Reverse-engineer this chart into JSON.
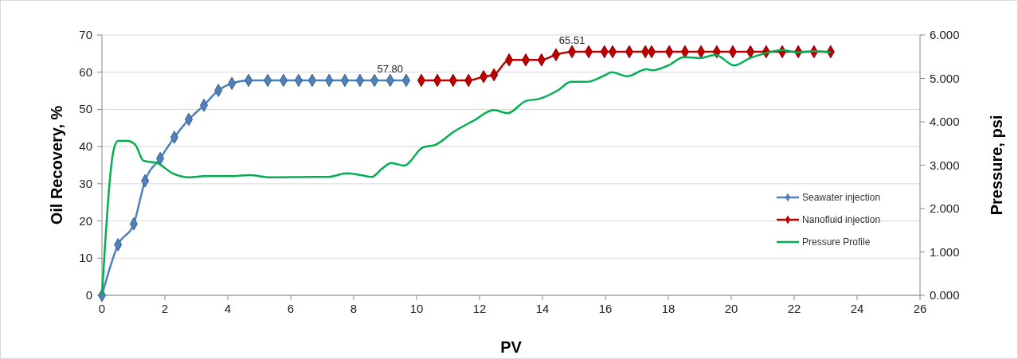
{
  "chart_data": {
    "type": "line",
    "xlabel": "PV",
    "ylabel": "Oil Recovery, %",
    "y2label": "Pressure, psi",
    "xlim": [
      0,
      26
    ],
    "xticks": [
      0,
      2,
      4,
      6,
      8,
      10,
      12,
      14,
      16,
      18,
      20,
      22,
      24,
      26
    ],
    "ylim": [
      0,
      70
    ],
    "yticks": [
      0,
      10,
      20,
      30,
      40,
      50,
      60,
      70
    ],
    "y2lim": [
      0,
      6
    ],
    "y2ticks": [
      {
        "value": 0,
        "label": "0.000"
      },
      {
        "value": 1,
        "label": "1.000"
      },
      {
        "value": 2,
        "label": "2.000"
      },
      {
        "value": 3,
        "label": "3.000"
      },
      {
        "value": 4,
        "label": "4.000"
      },
      {
        "value": 5,
        "label": "5.000"
      },
      {
        "value": 6,
        "label": "6.000"
      }
    ],
    "grid": "y",
    "legend": "right",
    "marker": "diamond",
    "annotations": [
      {
        "text": "57.80",
        "x": 9.16,
        "y": 57.8
      },
      {
        "text": "65.51",
        "x": 14.94,
        "y": 65.51
      }
    ],
    "series": [
      {
        "name": "Seawater injection",
        "color": "#4f81bd",
        "x": [
          0,
          0.51,
          1.01,
          1.37,
          1.85,
          2.3,
          2.76,
          3.24,
          3.7,
          4.13,
          4.66,
          5.27,
          5.77,
          6.25,
          6.68,
          7.22,
          7.72,
          8.2,
          8.66,
          9.16,
          9.67
        ],
        "values": [
          0,
          13.6,
          19.2,
          30.8,
          36.8,
          42.5,
          47.3,
          51.1,
          55.1,
          57,
          57.8,
          57.8,
          57.8,
          57.8,
          57.8,
          57.8,
          57.8,
          57.8,
          57.8,
          57.8,
          57.8
        ]
      },
      {
        "name": "Nanofluid injection",
        "color": "#c00000",
        "x": [
          10.15,
          10.66,
          11.16,
          11.65,
          12.13,
          12.46,
          12.94,
          13.47,
          13.97,
          14.43,
          14.94,
          15.47,
          15.97,
          16.23,
          16.76,
          17.27,
          17.47,
          18.03,
          18.53,
          19.04,
          19.54,
          20.05,
          20.61,
          21.11,
          21.62,
          22.13,
          22.63,
          23.16
        ],
        "values": [
          57.8,
          57.8,
          57.8,
          57.8,
          58.8,
          59.3,
          63.3,
          63.3,
          63.3,
          64.7,
          65.51,
          65.51,
          65.51,
          65.51,
          65.51,
          65.51,
          65.51,
          65.51,
          65.51,
          65.51,
          65.51,
          65.51,
          65.51,
          65.51,
          65.51,
          65.51,
          65.51,
          65.51
        ]
      },
      {
        "name": "Pressure Profile",
        "color": "#00b050",
        "axis": "y2",
        "marker": "none",
        "x": [
          0,
          0.38,
          0.51,
          0.81,
          1.06,
          1.32,
          1.75,
          2.25,
          2.78,
          3.27,
          4.18,
          4.68,
          5.37,
          6.71,
          7.2,
          7.77,
          8.23,
          8.58,
          8.9,
          9.2,
          9.6,
          10.2,
          10.6,
          11.2,
          11.8,
          12.45,
          12.9,
          13.47,
          13.9,
          14.5,
          14.9,
          15.4,
          15.95,
          16.2,
          16.7,
          17.3,
          17.5,
          18.0,
          18.5,
          19.0,
          19.5,
          20.1,
          20.6,
          21.1,
          21.6,
          22.15,
          22.65,
          23.16
        ],
        "values": [
          0,
          3.38,
          3.56,
          3.56,
          3.47,
          3.1,
          3.05,
          2.81,
          2.72,
          2.75,
          2.75,
          2.77,
          2.72,
          2.73,
          2.73,
          2.81,
          2.77,
          2.73,
          2.92,
          3.05,
          2.99,
          3.41,
          3.47,
          3.78,
          4.02,
          4.27,
          4.2,
          4.48,
          4.53,
          4.73,
          4.92,
          4.92,
          5.06,
          5.14,
          5.05,
          5.21,
          5.19,
          5.3,
          5.49,
          5.47,
          5.54,
          5.3,
          5.47,
          5.58,
          5.65,
          5.6,
          5.63,
          5.6
        ]
      }
    ]
  }
}
